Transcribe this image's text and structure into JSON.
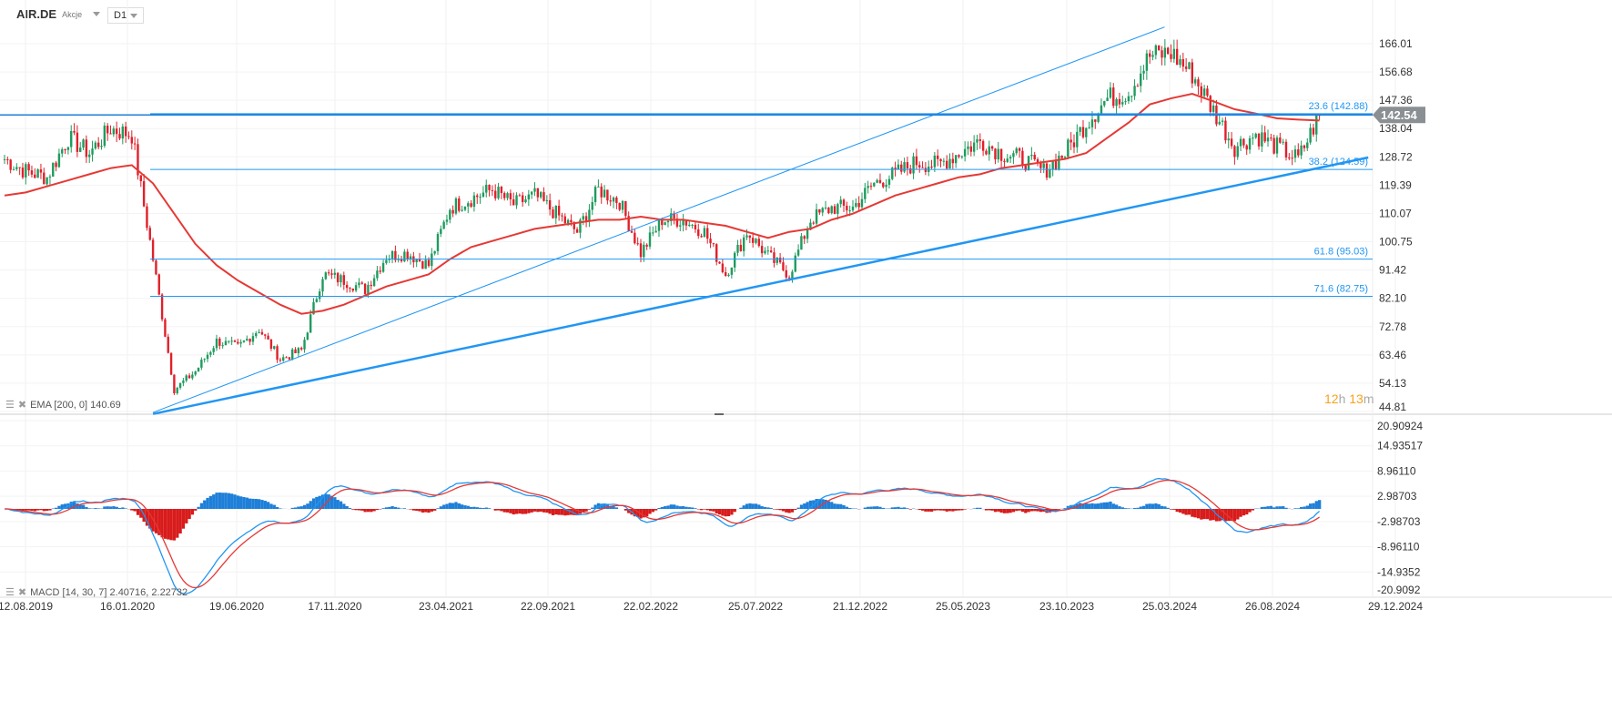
{
  "header": {
    "symbol": "AIR.DE",
    "asset_type": "Akcje",
    "timeframe": "D1"
  },
  "indicators": {
    "ema_label": "EMA [200, 0] 140.69",
    "macd_label": "MACD [14, 30, 7] 2.40716, 2.22732"
  },
  "timer": {
    "hours": "12",
    "h": "h",
    "minutes": "13",
    "m": "m"
  },
  "colors": {
    "up": "#1e9b5e",
    "down": "#e0202b",
    "ema": "#e53935",
    "fib": "#2196f3",
    "macd": "#2196f3",
    "signal": "#e53935",
    "price_tag": "#8a8f93"
  },
  "chart_data": {
    "type": "candlestick",
    "price_axis_ticks": [
      "166.01",
      "156.68",
      "147.36",
      "138.04",
      "128.72",
      "119.39",
      "110.07",
      "100.75",
      "91.42",
      "82.10",
      "72.78",
      "63.46",
      "54.13",
      "44.81"
    ],
    "price_range": [
      44.81,
      166.01
    ],
    "macd_axis_ticks": [
      "20.90924",
      "14.93517",
      "8.96110",
      "2.98703",
      "-2.98703",
      "-8.96110",
      "-14.9352",
      "-20.9092"
    ],
    "macd_range": [
      -20.9092,
      20.90924
    ],
    "date_ticks": [
      "12.08.2019",
      "16.01.2020",
      "19.06.2020",
      "17.11.2020",
      "23.04.2021",
      "22.09.2021",
      "22.02.2022",
      "25.07.2022",
      "21.12.2022",
      "25.05.2023",
      "23.10.2023",
      "25.03.2024",
      "26.08.2024",
      "29.12.2024"
    ],
    "monthly_close_from_2019_07": [
      128,
      124,
      122,
      135,
      130,
      138,
      136,
      95,
      52,
      58,
      68,
      66,
      72,
      62,
      65,
      90,
      88,
      85,
      96,
      97,
      93,
      112,
      115,
      118,
      113,
      116,
      110,
      104,
      118,
      114,
      97,
      108,
      108,
      104,
      90,
      104,
      96,
      90,
      108,
      112,
      112,
      120,
      123,
      127,
      126,
      130,
      134,
      130,
      128,
      124,
      130,
      140,
      148,
      150,
      162,
      163,
      156,
      144,
      132,
      136,
      132,
      128,
      142.54
    ],
    "ema200_monthly_from_2019_07": [
      116,
      117,
      119,
      121,
      123,
      125,
      126,
      120,
      110,
      100,
      93,
      88,
      84,
      80,
      77,
      78,
      80,
      83,
      86,
      88,
      90,
      95,
      99,
      101,
      103,
      105,
      106,
      107,
      108,
      108,
      109,
      108,
      108,
      107,
      106,
      104,
      102,
      104,
      105,
      108,
      110,
      113,
      116,
      118,
      120,
      122,
      123,
      125,
      126,
      127,
      128,
      130,
      135,
      140,
      146,
      148,
      149.5,
      147,
      144.4,
      143,
      141.4,
      141,
      140.69
    ],
    "current_price": "142.54",
    "fib_levels": [
      {
        "label": "23.6 (142.88)",
        "value": 142.88
      },
      {
        "label": "38.2 (124.59)",
        "value": 124.59
      },
      {
        "label": "61.8 (95.03)",
        "value": 95.03
      },
      {
        "label": "71.6 (82.75)",
        "value": 82.75
      }
    ],
    "trendlines": [
      {
        "from": [
          7.0,
          44.5
        ],
        "to": [
          54.7,
          171.5
        ]
      },
      {
        "from": [
          7.0,
          44.0
        ],
        "to": [
          64.3,
          128.5
        ]
      }
    ]
  }
}
